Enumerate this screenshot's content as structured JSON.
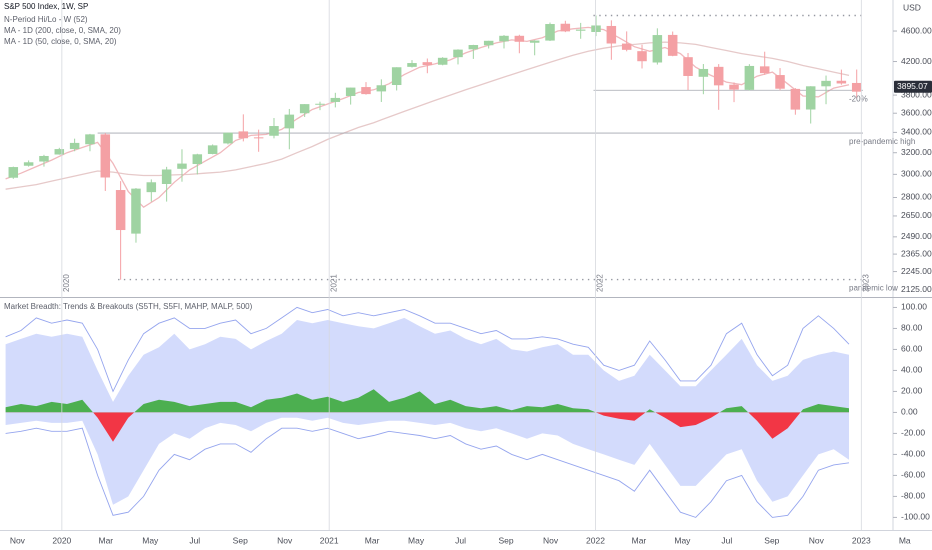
{
  "chart_data": [
    {
      "type": "candlestick",
      "title": "S&P 500 Index, 1W, SP",
      "currency": "USD",
      "log": true,
      "up_color": "#9fd3a2",
      "down_color": "#f4a0a4",
      "x": [
        -11,
        -8,
        -5,
        -2,
        1,
        4,
        7,
        10,
        13,
        16,
        19,
        22,
        25,
        28,
        31,
        34,
        37,
        40,
        43,
        46,
        49,
        52,
        55,
        58,
        61,
        64,
        67,
        70,
        73,
        76,
        79,
        82,
        85,
        88,
        91,
        94,
        97,
        100,
        103,
        106,
        109,
        112,
        115,
        118,
        121,
        124,
        127,
        130,
        133,
        136,
        139,
        142,
        145,
        148,
        151,
        154
      ],
      "ohlc": [
        [
          2970,
          3070,
          2960,
          3066
        ],
        [
          3078,
          3127,
          3070,
          3110
        ],
        [
          3117,
          3180,
          3070,
          3169
        ],
        [
          3183,
          3247,
          3181,
          3235
        ],
        [
          3235,
          3337,
          3214,
          3295
        ],
        [
          3282,
          3385,
          3214,
          3380
        ],
        [
          3380,
          3393,
          2855,
          2972
        ],
        [
          2863,
          2940,
          2191,
          2541
        ],
        [
          2514,
          2880,
          2447,
          2875
        ],
        [
          2845,
          2955,
          2766,
          2930
        ],
        [
          2915,
          3068,
          2766,
          3044
        ],
        [
          3050,
          3233,
          2935,
          3098
        ],
        [
          3094,
          3190,
          2999,
          3185
        ],
        [
          3188,
          3280,
          3185,
          3271
        ],
        [
          3290,
          3399,
          3280,
          3397
        ],
        [
          3410,
          3588,
          3310,
          3341
        ],
        [
          3350,
          3428,
          3209,
          3348
        ],
        [
          3366,
          3549,
          3340,
          3465
        ],
        [
          3441,
          3646,
          3233,
          3585
        ],
        [
          3600,
          3699,
          3560,
          3699
        ],
        [
          3700,
          3726,
          3633,
          3703
        ],
        [
          3723,
          3826,
          3663,
          3768
        ],
        [
          3790,
          3886,
          3694,
          3886
        ],
        [
          3892,
          3950,
          3805,
          3811
        ],
        [
          3842,
          3983,
          3723,
          3913
        ],
        [
          3916,
          4129,
          3853,
          4129
        ],
        [
          4134,
          4218,
          4126,
          4181
        ],
        [
          4192,
          4238,
          4056,
          4156
        ],
        [
          4160,
          4255,
          4153,
          4247
        ],
        [
          4255,
          4356,
          4164,
          4352
        ],
        [
          4356,
          4415,
          4233,
          4412
        ],
        [
          4409,
          4468,
          4367,
          4468
        ],
        [
          4461,
          4545,
          4367,
          4535
        ],
        [
          4535,
          4549,
          4305,
          4455
        ],
        [
          4442,
          4476,
          4279,
          4471
        ],
        [
          4471,
          4718,
          4465,
          4697
        ],
        [
          4701,
          4743,
          4585,
          4595
        ],
        [
          4604,
          4713,
          4495,
          4620
        ],
        [
          4587,
          4818,
          4531,
          4677
        ],
        [
          4670,
          4749,
          4222,
          4432
        ],
        [
          4431,
          4595,
          4330,
          4349
        ],
        [
          4332,
          4416,
          4114,
          4204
        ],
        [
          4188,
          4637,
          4162,
          4545
        ],
        [
          4547,
          4593,
          4267,
          4272
        ],
        [
          4255,
          4308,
          3858,
          4023
        ],
        [
          4013,
          4169,
          3810,
          4108
        ],
        [
          4134,
          4168,
          3637,
          3912
        ],
        [
          3920,
          3946,
          3721,
          3863
        ],
        [
          3860,
          4167,
          3853,
          4145
        ],
        [
          4140,
          4325,
          4037,
          4057
        ],
        [
          4034,
          4119,
          3855,
          3873
        ],
        [
          3871,
          3880,
          3584,
          3639
        ],
        [
          3640,
          3902,
          3491,
          3901
        ],
        [
          3901,
          4028,
          3698,
          3965
        ],
        [
          3966,
          4100,
          3919,
          3934
        ],
        [
          3940,
          4101,
          3764,
          3839
        ]
      ],
      "lines": [
        {
          "name": "MA - 1D (200, close, 0, SMA, 20)",
          "color": "#e6c9c9",
          "values": [
            2870,
            2890,
            2910,
            2940,
            2970,
            3000,
            3030,
            3020,
            3000,
            2990,
            2990,
            2995,
            3000,
            3010,
            3020,
            3040,
            3070,
            3100,
            3140,
            3200,
            3260,
            3330,
            3390,
            3450,
            3500,
            3560,
            3620,
            3680,
            3740,
            3800,
            3860,
            3920,
            3980,
            4040,
            4100,
            4160,
            4220,
            4280,
            4330,
            4370,
            4400,
            4420,
            4440,
            4450,
            4440,
            4420,
            4380,
            4340,
            4300,
            4270,
            4240,
            4200,
            4150,
            4110,
            4070,
            4030
          ]
        },
        {
          "name": "MA - 1D (50, close, 0, SMA, 20)",
          "color": "#f0b8bc",
          "values": [
            2960,
            3010,
            3070,
            3130,
            3200,
            3250,
            3300,
            3100,
            2850,
            2720,
            2800,
            2930,
            3040,
            3120,
            3200,
            3320,
            3370,
            3380,
            3430,
            3540,
            3640,
            3700,
            3760,
            3830,
            3860,
            3930,
            4040,
            4130,
            4170,
            4220,
            4310,
            4380,
            4440,
            4480,
            4460,
            4510,
            4600,
            4630,
            4650,
            4620,
            4510,
            4390,
            4330,
            4380,
            4300,
            4130,
            4030,
            3950,
            3920,
            4020,
            4070,
            3930,
            3790,
            3780,
            3880,
            3920
          ]
        }
      ],
      "hilo": {
        "name": "N-Period Hi/Lo - W (52)",
        "levels": [
          {
            "value": 3393,
            "from": 7,
            "style": "solid",
            "label": "pre-pandemic high"
          },
          {
            "value": 2192,
            "from": 11,
            "style": "dotted",
            "label": "pandemic low"
          },
          {
            "value": 3855,
            "from": 104,
            "style": "solid",
            "label": "-20%"
          },
          {
            "value": 4818,
            "from": 104,
            "style": "dotted"
          }
        ]
      },
      "last_price": 3895.07,
      "xlim": [
        -12.1,
        162.6
      ],
      "ylim": [
        2081,
        5046
      ],
      "yticks": [
        {
          "value": 4600,
          "label": "4600.00"
        },
        {
          "value": 4200,
          "label": "4200.00"
        },
        {
          "value": 3800,
          "label": "3800.00"
        },
        {
          "value": 3600,
          "label": "3600.00"
        },
        {
          "value": 3400,
          "label": "3400.00"
        },
        {
          "value": 3200,
          "label": "3200.00"
        },
        {
          "value": 3000,
          "label": "3000.00"
        },
        {
          "value": 2800,
          "label": "2800.00"
        },
        {
          "value": 2650,
          "label": "2650.00"
        },
        {
          "value": 2490,
          "label": "2490.00"
        },
        {
          "value": 2365,
          "label": "2365.00"
        },
        {
          "value": 2245,
          "label": "2245.00"
        },
        {
          "value": 2125,
          "label": "2125.00"
        }
      ]
    },
    {
      "type": "area",
      "title": "Market Breadth: Trends & Breakouts (S5TH, S5FI, MAHP, MALP, 500)",
      "x": [
        -11,
        -8,
        -5,
        -2,
        1,
        4,
        7,
        10,
        13,
        16,
        19,
        22,
        25,
        28,
        31,
        34,
        37,
        40,
        43,
        46,
        49,
        52,
        55,
        58,
        61,
        64,
        67,
        70,
        73,
        76,
        79,
        82,
        85,
        88,
        91,
        94,
        97,
        100,
        103,
        106,
        109,
        112,
        115,
        118,
        121,
        124,
        127,
        130,
        133,
        136,
        139,
        142,
        145,
        148,
        151,
        154
      ],
      "band": {
        "color": "#d3dbfc",
        "upper": [
          65,
          70,
          75,
          72,
          75,
          72,
          40,
          10,
          35,
          55,
          62,
          75,
          60,
          65,
          72,
          70,
          60,
          68,
          75,
          88,
          85,
          88,
          85,
          82,
          80,
          85,
          90,
          82,
          75,
          78,
          70,
          65,
          70,
          60,
          58,
          62,
          65,
          55,
          55,
          40,
          30,
          35,
          55,
          40,
          25,
          25,
          40,
          55,
          70,
          45,
          30,
          35,
          50,
          55,
          58,
          55
        ],
        "lower": [
          -12,
          -10,
          -8,
          -10,
          -10,
          -8,
          -40,
          -88,
          -80,
          -55,
          -30,
          -20,
          -25,
          -15,
          -10,
          -12,
          -18,
          -10,
          -5,
          -5,
          -8,
          -5,
          -10,
          -12,
          -10,
          -8,
          -8,
          -10,
          -12,
          -10,
          -15,
          -18,
          -15,
          -20,
          -25,
          -20,
          -22,
          -30,
          -35,
          -40,
          -45,
          -50,
          -30,
          -50,
          -70,
          -70,
          -55,
          -40,
          -35,
          -65,
          -85,
          -80,
          -60,
          -40,
          -35,
          -45
        ]
      },
      "lines": [
        {
          "color": "#95a5ee",
          "values": [
            72,
            78,
            90,
            85,
            88,
            85,
            60,
            20,
            50,
            75,
            85,
            90,
            80,
            80,
            85,
            88,
            75,
            80,
            90,
            100,
            95,
            98,
            92,
            95,
            92,
            95,
            98,
            92,
            85,
            85,
            80,
            75,
            78,
            70,
            70,
            72,
            70,
            65,
            62,
            45,
            40,
            45,
            68,
            50,
            30,
            30,
            45,
            75,
            85,
            55,
            35,
            45,
            80,
            92,
            80,
            65
          ]
        },
        {
          "color": "#95a5ee",
          "values": [
            -20,
            -18,
            -15,
            -18,
            -18,
            -15,
            -60,
            -98,
            -95,
            -80,
            -55,
            -40,
            -45,
            -35,
            -30,
            -30,
            -38,
            -25,
            -15,
            -15,
            -18,
            -15,
            -20,
            -25,
            -22,
            -18,
            -20,
            -22,
            -25,
            -22,
            -30,
            -35,
            -32,
            -40,
            -45,
            -40,
            -45,
            -50,
            -55,
            -60,
            -65,
            -75,
            -55,
            -75,
            -95,
            -100,
            -85,
            -65,
            -60,
            -85,
            -100,
            -98,
            -80,
            -55,
            -50,
            -48
          ]
        }
      ],
      "oscillator": {
        "up_color": "#4caf50",
        "down_color": "#f23645",
        "values": [
          5,
          8,
          6,
          10,
          8,
          12,
          -5,
          -28,
          -5,
          8,
          12,
          10,
          6,
          8,
          10,
          10,
          5,
          12,
          14,
          18,
          12,
          15,
          10,
          14,
          22,
          10,
          14,
          20,
          8,
          12,
          6,
          4,
          6,
          2,
          6,
          5,
          8,
          4,
          3,
          -3,
          -6,
          -8,
          3,
          -5,
          -14,
          -12,
          -5,
          4,
          6,
          -8,
          -25,
          -15,
          3,
          8,
          6,
          4
        ]
      },
      "xlim": [
        -12.1,
        162.6
      ],
      "ylim": [
        -112,
        109
      ],
      "yticks": [
        {
          "value": 100,
          "label": "100.00"
        },
        {
          "value": 80,
          "label": "80.00"
        },
        {
          "value": 60,
          "label": "60.00"
        },
        {
          "value": 40,
          "label": "40.00"
        },
        {
          "value": 20,
          "label": "20.00"
        },
        {
          "value": 0,
          "label": "0.00"
        },
        {
          "value": -20,
          "label": "-20.00"
        },
        {
          "value": -40,
          "label": "-40.00"
        },
        {
          "value": -60,
          "label": "-60.00"
        },
        {
          "value": -80,
          "label": "-80.00"
        },
        {
          "value": -100,
          "label": "-100.00"
        }
      ],
      "xticks": [
        {
          "value": -8.7,
          "label": "Nov"
        },
        {
          "value": 0,
          "label": "2020"
        },
        {
          "value": 8.6,
          "label": "Mar"
        },
        {
          "value": 17.3,
          "label": "May"
        },
        {
          "value": 26,
          "label": "Jul"
        },
        {
          "value": 34.9,
          "label": "Sep"
        },
        {
          "value": 43.6,
          "label": "Nov"
        },
        {
          "value": 52.3,
          "label": "2021"
        },
        {
          "value": 60.7,
          "label": "Mar"
        },
        {
          "value": 69.3,
          "label": "May"
        },
        {
          "value": 78,
          "label": "Jul"
        },
        {
          "value": 86.9,
          "label": "Sep"
        },
        {
          "value": 95.6,
          "label": "Nov"
        },
        {
          "value": 104.4,
          "label": "2022"
        },
        {
          "value": 112.9,
          "label": "Mar"
        },
        {
          "value": 121.4,
          "label": "May"
        },
        {
          "value": 130.1,
          "label": "Jul"
        },
        {
          "value": 138.9,
          "label": "Sep"
        },
        {
          "value": 147.6,
          "label": "Nov"
        },
        {
          "value": 156.4,
          "label": "2023"
        },
        {
          "value": 164.9,
          "label": "Ma"
        }
      ]
    }
  ]
}
